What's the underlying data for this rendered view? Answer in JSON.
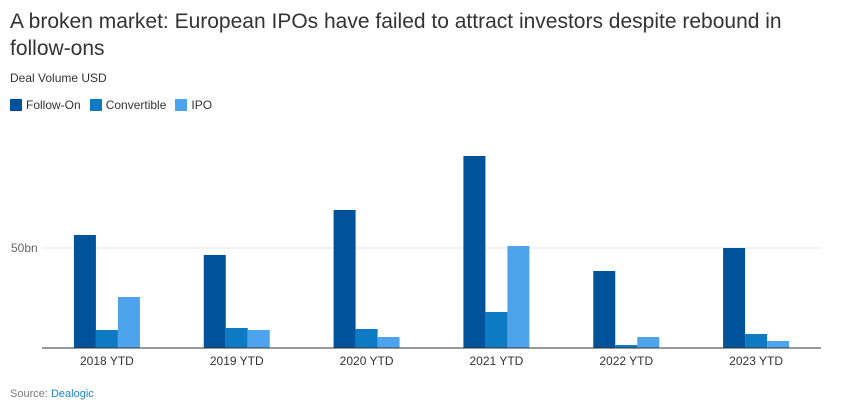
{
  "chart_data": {
    "type": "bar",
    "title": "A broken market: European IPOs have failed to attract investors despite rebound in follow-ons",
    "ylabel": "Deal Volume USD",
    "xlabel": "",
    "categories": [
      "2018 YTD",
      "2019 YTD",
      "2020 YTD",
      "2021 YTD",
      "2022 YTD",
      "2023 YTD"
    ],
    "series": [
      {
        "name": "Follow-On",
        "color": "#00529b",
        "values": [
          56.5,
          46.5,
          69,
          96,
          38.5,
          50
        ]
      },
      {
        "name": "Convertible",
        "color": "#0f7ac4",
        "values": [
          9,
          10,
          9.5,
          18,
          1.5,
          7
        ]
      },
      {
        "name": "IPO",
        "color": "#4ea4ec",
        "values": [
          25.5,
          9,
          5.5,
          51,
          5.5,
          3.5
        ]
      }
    ],
    "ylim": [
      0,
      100
    ],
    "yticks": [
      {
        "value": 50,
        "label": "50bn"
      }
    ],
    "grid": true,
    "legend_position": "top-left"
  },
  "source": {
    "label": "Source:",
    "name": "Dealogic"
  }
}
